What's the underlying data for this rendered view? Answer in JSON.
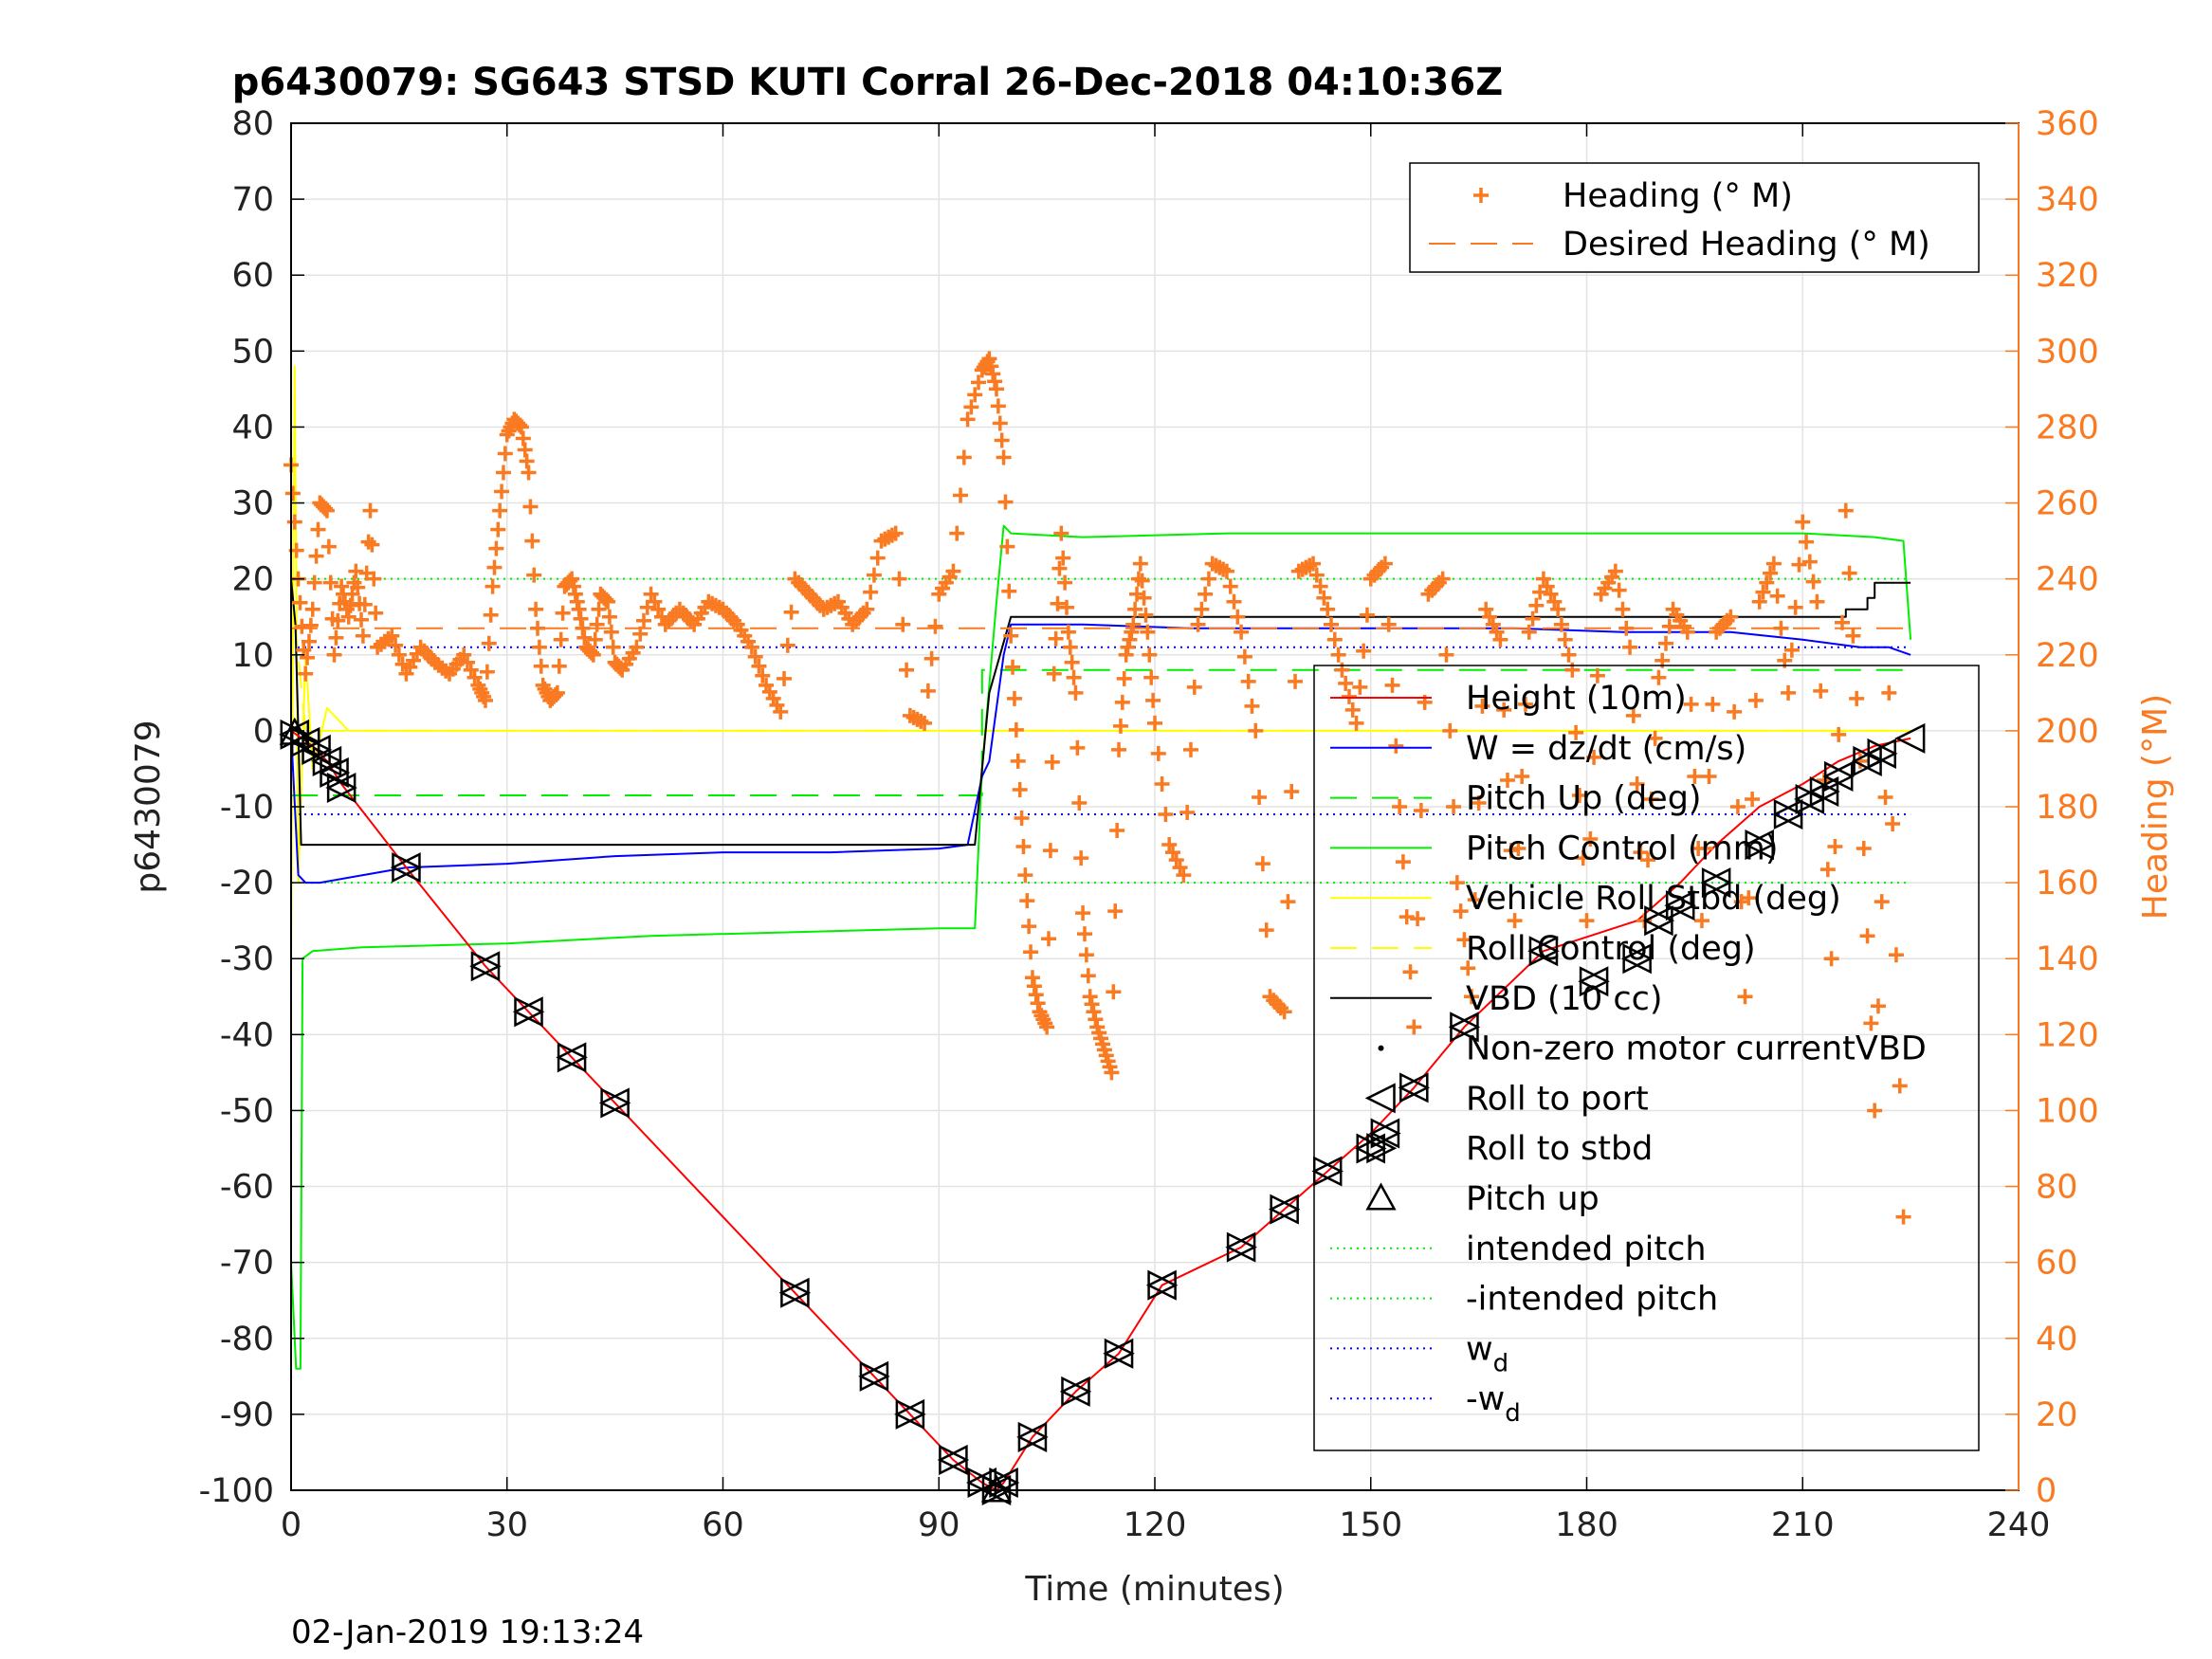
{
  "chart_data": {
    "type": "line",
    "title": "p6430079: SG643 STSD KUTI Corral 26-Dec-2018 04:10:36Z",
    "xlabel": "Time (minutes)",
    "ylabel": "p6430079",
    "y2label": "Heading (°M)",
    "footer": "02-Jan-2019 19:13:24",
    "xlim": [
      0,
      240
    ],
    "ylim": [
      -100,
      80
    ],
    "y2lim": [
      0,
      360
    ],
    "xticks": [
      "0",
      "30",
      "60",
      "90",
      "120",
      "150",
      "180",
      "210",
      "240"
    ],
    "yticks": [
      "80",
      "70",
      "60",
      "50",
      "40",
      "30",
      "20",
      "10",
      "0",
      "-10",
      "-20",
      "-30",
      "-40",
      "-50",
      "-60",
      "-70",
      "-80",
      "-90",
      "-100"
    ],
    "y2ticks": [
      "360",
      "340",
      "320",
      "300",
      "280",
      "260",
      "240",
      "220",
      "200",
      "180",
      "160",
      "140",
      "120",
      "100",
      "80",
      "60",
      "40",
      "20",
      "0"
    ],
    "grid": true,
    "colors": {
      "orange": "#f97a21",
      "red": "#ff0000",
      "blue": "#0000ff",
      "green": "#00ee00",
      "yellow": "#ffff00",
      "black": "#000000"
    },
    "legend_top": {
      "placement": "top-right",
      "entries": [
        {
          "label": "Heading (° M)",
          "marker": "plus",
          "color": "#f97a21"
        },
        {
          "label": "Desired Heading (° M)",
          "marker": "dashed",
          "color": "#f97a21"
        }
      ]
    },
    "legend_main": {
      "placement": "right",
      "entries": [
        {
          "label": "Height (10m)",
          "marker": "line",
          "color": "#ff0000"
        },
        {
          "label": "W = dz/dt (cm/s)",
          "marker": "line",
          "color": "#0000ff"
        },
        {
          "label": "Pitch Up (deg)",
          "marker": "dashed",
          "color": "#00ee00"
        },
        {
          "label": "Pitch Control (mm)",
          "marker": "line",
          "color": "#00ee00"
        },
        {
          "label": "Vehicle Roll Stbd (deg)",
          "marker": "line",
          "color": "#ffff00"
        },
        {
          "label": "Roll Control (deg)",
          "marker": "dashed",
          "color": "#ffff00"
        },
        {
          "label": "VBD (10 cc)",
          "marker": "line",
          "color": "#000000"
        },
        {
          "label": "Non-zero motor currentVBD",
          "marker": "dot",
          "color": "#000000"
        },
        {
          "label": "Roll to port",
          "marker": "triangle-left",
          "color": "#000000"
        },
        {
          "label": "Roll to stbd",
          "marker": "triangle-right",
          "color": "#000000"
        },
        {
          "label": "Pitch up",
          "marker": "triangle-up",
          "color": "#000000"
        },
        {
          "label": "intended pitch",
          "marker": "dotted",
          "color": "#00ee00"
        },
        {
          "label": "-intended pitch",
          "marker": "dotted",
          "color": "#00ee00"
        },
        {
          "label": "w",
          "sub": "d",
          "marker": "dotted",
          "color": "#0000ff"
        },
        {
          "label": "-w",
          "sub": "d",
          "marker": "dotted",
          "color": "#0000ff"
        }
      ]
    },
    "series": [
      {
        "name": "Height (10m)",
        "axis": "left",
        "color": "#ff0000",
        "x": [
          0,
          1.5,
          3,
          5,
          7,
          16,
          27,
          33,
          39,
          45,
          70,
          81,
          86,
          92,
          96,
          98,
          99,
          103,
          109,
          115,
          121,
          132,
          138,
          144,
          150,
          156,
          163,
          174,
          187,
          193,
          198,
          204,
          210,
          215,
          220,
          225
        ],
        "y": [
          0,
          -1,
          -2,
          -4,
          -7,
          -18,
          -31,
          -37,
          -43,
          -49,
          -74,
          -85,
          -90,
          -96,
          -99,
          -100,
          -99,
          -93,
          -87,
          -82,
          -73,
          -68,
          -63,
          -58,
          -53,
          -47,
          -39,
          -29,
          -25,
          -20,
          -15,
          -10,
          -7,
          -4,
          -2,
          -1
        ]
      },
      {
        "name": "W = dz/dt (cm/s)",
        "axis": "left",
        "color": "#0000ff",
        "x": [
          0,
          1,
          2,
          4,
          10,
          16,
          30,
          45,
          60,
          75,
          90,
          94,
          96,
          97,
          99,
          100,
          110,
          125,
          140,
          155,
          170,
          185,
          200,
          210,
          218,
          222,
          225
        ],
        "y": [
          0,
          -19,
          -20,
          -20,
          -19,
          -18,
          -17.5,
          -16.5,
          -16,
          -16,
          -15.5,
          -15,
          -6,
          -4,
          10,
          14,
          14,
          13.5,
          13.5,
          13.5,
          13.5,
          13,
          13,
          12,
          11,
          11,
          10
        ]
      },
      {
        "name": "Pitch Up (deg)",
        "axis": "left",
        "color": "#00ee00",
        "dashed": true,
        "x": [
          0,
          96,
          96,
          225
        ],
        "y": [
          -8.5,
          -8.5,
          8,
          8
        ]
      },
      {
        "name": "Pitch Control (mm)",
        "axis": "left",
        "color": "#00ee00",
        "x": [
          0,
          0.7,
          1.3,
          1.6,
          3,
          10,
          30,
          50,
          70,
          90,
          95,
          96,
          98,
          99,
          100,
          110,
          130,
          150,
          170,
          190,
          210,
          220,
          224,
          225
        ],
        "y": [
          -70,
          -84,
          -84,
          -30,
          -29,
          -28.5,
          -28,
          -27,
          -26.5,
          -26,
          -26,
          -5,
          17,
          27,
          26,
          25.5,
          26,
          26,
          26,
          26,
          26,
          25.5,
          25,
          12
        ]
      },
      {
        "name": "Vehicle Roll Stbd (deg)",
        "axis": "left",
        "color": "#ffff00",
        "x": [
          0,
          0.5,
          1,
          2,
          3,
          5,
          8,
          15,
          30,
          50,
          70,
          90,
          95,
          100,
          110,
          130,
          150,
          170,
          190,
          210,
          225
        ],
        "y": [
          -30,
          48,
          -20,
          10,
          -5,
          3,
          0,
          0,
          0,
          0,
          0,
          0,
          0,
          0,
          0,
          0,
          0,
          0,
          0,
          0,
          0
        ]
      },
      {
        "name": "Roll Control (deg)",
        "axis": "left",
        "color": "#ffff00",
        "dashed": true,
        "x": [
          0,
          1,
          2,
          8,
          15,
          30,
          50,
          70,
          90,
          100,
          120,
          140,
          160,
          180,
          200,
          225
        ],
        "y": [
          20,
          10,
          0,
          0,
          0,
          0,
          0,
          0,
          0,
          0,
          0,
          0,
          0,
          0,
          0,
          0
        ]
      },
      {
        "name": "VBD (10 cc)",
        "axis": "left",
        "color": "#000000",
        "x": [
          0,
          0.6,
          1,
          1.4,
          2,
          30,
          60,
          95,
          96,
          97,
          100,
          200,
          216,
          216,
          219,
          219,
          220,
          220,
          225
        ],
        "y": [
          20,
          14,
          0,
          -15,
          -15,
          -15,
          -15,
          -15,
          -5,
          5,
          15,
          15,
          15,
          16,
          16,
          17.5,
          17.5,
          19.5,
          19.5
        ]
      },
      {
        "name": "Heading (° M)",
        "axis": "right",
        "color": "#f97a21",
        "marker": "plus",
        "x": [
          0,
          1,
          2,
          3,
          4,
          5,
          6,
          7,
          8,
          9,
          10,
          11,
          12,
          14,
          16,
          18,
          20,
          22,
          24,
          26,
          27,
          28,
          29,
          30,
          31,
          32,
          33,
          34,
          35,
          36,
          37,
          38,
          39,
          40,
          41,
          42,
          43,
          44,
          45,
          46,
          48,
          50,
          52,
          54,
          56,
          58,
          60,
          62,
          64,
          66,
          68,
          70,
          72,
          74,
          76,
          78,
          80,
          82,
          84,
          86,
          88,
          90,
          92,
          94,
          96,
          97,
          98,
          99,
          100,
          101,
          102,
          103,
          104,
          105,
          106,
          107,
          108,
          109,
          110,
          111,
          112,
          113,
          114,
          115,
          116,
          117,
          118,
          119,
          120,
          122,
          124,
          126,
          128,
          130,
          132,
          134,
          136,
          138,
          140,
          142,
          144,
          146,
          148,
          150,
          152,
          154,
          156,
          158,
          160,
          162,
          164,
          166,
          168,
          170,
          172,
          174,
          176,
          178,
          180,
          182,
          184,
          186,
          188,
          190,
          192,
          194,
          196,
          198,
          200,
          202,
          204,
          206,
          208,
          210,
          212,
          214,
          216,
          218,
          220,
          222,
          224
        ],
        "y": [
          270,
          240,
          215,
          232,
          260,
          258,
          220,
          238,
          230,
          242,
          225,
          258,
          222,
          225,
          215,
          222,
          218,
          215,
          220,
          212,
          208,
          238,
          258,
          278,
          282,
          280,
          268,
          232,
          212,
          208,
          210,
          238,
          240,
          232,
          222,
          220,
          236,
          234,
          218,
          216,
          222,
          236,
          228,
          232,
          228,
          234,
          232,
          228,
          222,
          212,
          205,
          240,
          236,
          232,
          234,
          228,
          232,
          250,
          252,
          204,
          202,
          236,
          242,
          282,
          295,
          298,
          290,
          272,
          225,
          192,
          162,
          135,
          126,
          122,
          215,
          252,
          226,
          210,
          152,
          130,
          122,
          116,
          110,
          195,
          220,
          228,
          244,
          226,
          202,
          170,
          162,
          228,
          244,
          242,
          226,
          200,
          130,
          126,
          242,
          244,
          232,
          216,
          202,
          240,
          244,
          180,
          122,
          236,
          240,
          160,
          130,
          232,
          224,
          150,
          226,
          240,
          232,
          216,
          150,
          236,
          242,
          222,
          150,
          214,
          232,
          226,
          150,
          226,
          230,
          130,
          234,
          244,
          210,
          255,
          234,
          140,
          258,
          192,
          100,
          210,
          72
        ]
      },
      {
        "name": "Desired Heading (° M)",
        "axis": "right",
        "color": "#f97a21",
        "dashed": true,
        "x": [
          0,
          225
        ],
        "y": [
          227,
          227
        ]
      }
    ],
    "markers": {
      "roll_to_port": {
        "marker": "triangle-left",
        "x": [
          0.5,
          2,
          3.5,
          5,
          6,
          7,
          16,
          27,
          33,
          39,
          45,
          70,
          81,
          86,
          92,
          96,
          98,
          99,
          103,
          109,
          115,
          121,
          132,
          138,
          144,
          150,
          152,
          156,
          163,
          174,
          181,
          187,
          190,
          193,
          198,
          204,
          208,
          211,
          213,
          215,
          219,
          221,
          225
        ],
        "y": [
          -0.5,
          -1.5,
          -2.5,
          -4,
          -5.5,
          -7.5,
          -18,
          -31,
          -37,
          -43,
          -49,
          -74,
          -85,
          -90,
          -96,
          -99,
          -100,
          -99,
          -93,
          -87,
          -82,
          -73,
          -68,
          -63,
          -58,
          -55,
          -53,
          -47,
          -39,
          -29,
          -33,
          -30,
          -25,
          -23,
          -20,
          -15,
          -11,
          -9,
          -8,
          -6,
          -4,
          -3,
          -1
        ]
      },
      "roll_to_stbd": {
        "marker": "triangle-right",
        "x": [
          0.5,
          2,
          3.5,
          5,
          6,
          7,
          16,
          27,
          33,
          39,
          45,
          70,
          81,
          86,
          92,
          96,
          98,
          99,
          103,
          109,
          115,
          121,
          132,
          138,
          144,
          150,
          152,
          156,
          163,
          174,
          181,
          187,
          190,
          193,
          198,
          204,
          208,
          211,
          213,
          215,
          219,
          221
        ],
        "y": [
          -0.5,
          -1.5,
          -2.5,
          -4,
          -5.5,
          -7.5,
          -18,
          -31,
          -37,
          -43,
          -49,
          -74,
          -85,
          -90,
          -96,
          -99,
          -100,
          -99,
          -93,
          -87,
          -82,
          -73,
          -68,
          -63,
          -58,
          -55,
          -53,
          -47,
          -39,
          -29,
          -33,
          -30,
          -25,
          -23,
          -20,
          -15,
          -11,
          -9,
          -8,
          -6,
          -4,
          -3
        ]
      },
      "pitch_up": {
        "marker": "triangle-up",
        "x": [
          0.5,
          98
        ],
        "y": [
          -0.3,
          -100
        ]
      }
    },
    "reference_lines": {
      "intended_pitch": 20,
      "neg_intended_pitch": -20,
      "w_d": 11,
      "neg_w_d": -11
    }
  }
}
